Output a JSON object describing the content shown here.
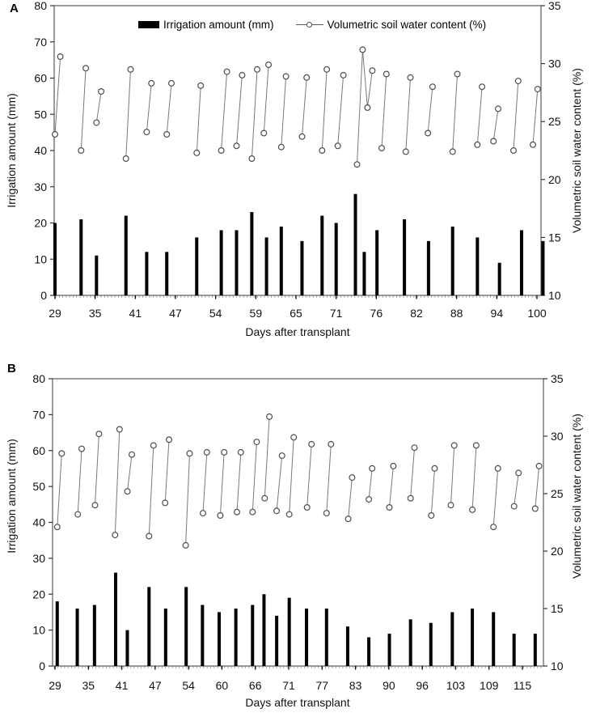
{
  "panel_labels": [
    "A",
    "B"
  ],
  "legend": {
    "bar_label": "Irrigation amount (mm)",
    "line_label": "Volumetric soil water content (%)"
  },
  "colors": {
    "bar": "#000000",
    "line": "#787878",
    "marker_stroke": "#4d4d4d",
    "marker_fill": "#ffffff",
    "axis": "#595959",
    "text": "#111111"
  },
  "chart_data": [
    {
      "type": "bar",
      "panel": "A",
      "title": "",
      "xlabel": "Days after transplant",
      "ylabel_left": "Irrigation amount (mm)",
      "ylabel_right": "Volumetric soil water content (%)",
      "x_ticks": [
        29,
        35,
        41,
        47,
        54,
        59,
        65,
        71,
        76,
        82,
        88,
        94,
        100
      ],
      "ylim_left": [
        0,
        80
      ],
      "yticks_left": [
        0,
        10,
        20,
        30,
        40,
        50,
        60,
        70,
        80
      ],
      "ylim_right": [
        10,
        35
      ],
      "yticks_right": [
        10,
        15,
        20,
        25,
        30,
        35
      ],
      "grid": false,
      "legend_position": "top-center",
      "series": [
        {
          "name": "Irrigation amount (mm)",
          "type": "bar",
          "axis": "left",
          "points": [
            [
              29.0,
              20
            ],
            [
              32.9,
              21
            ],
            [
              35.2,
              11
            ],
            [
              39.6,
              22
            ],
            [
              42.7,
              12
            ],
            [
              45.7,
              12
            ],
            [
              50.7,
              16
            ],
            [
              54.7,
              18
            ],
            [
              56.6,
              18
            ],
            [
              58.5,
              23
            ],
            [
              60.6,
              16
            ],
            [
              62.8,
              19
            ],
            [
              65.9,
              15
            ],
            [
              68.9,
              22
            ],
            [
              71.0,
              20
            ],
            [
              73.4,
              28
            ],
            [
              74.5,
              12
            ],
            [
              76.1,
              18
            ],
            [
              80.2,
              21
            ],
            [
              83.8,
              15
            ],
            [
              87.4,
              19
            ],
            [
              91.1,
              16
            ],
            [
              94.4,
              9
            ],
            [
              97.7,
              18
            ],
            [
              100.9,
              15
            ]
          ]
        },
        {
          "name": "Volumetric soil water content (%)",
          "type": "line",
          "axis": "right",
          "segments": [
            [
              [
                29.0,
                23.9
              ],
              [
                29.8,
                30.6
              ]
            ],
            [
              [
                32.9,
                22.5
              ],
              [
                33.6,
                29.6
              ]
            ],
            [
              [
                35.2,
                24.9
              ],
              [
                35.9,
                27.6
              ]
            ],
            [
              [
                39.6,
                21.8
              ],
              [
                40.3,
                29.5
              ]
            ],
            [
              [
                42.7,
                24.1
              ],
              [
                43.4,
                28.3
              ]
            ],
            [
              [
                45.7,
                23.9
              ],
              [
                46.4,
                28.3
              ]
            ],
            [
              [
                50.7,
                22.3
              ],
              [
                51.4,
                28.1
              ]
            ],
            [
              [
                54.7,
                22.5
              ],
              [
                55.4,
                29.3
              ]
            ],
            [
              [
                56.6,
                22.9
              ],
              [
                57.3,
                29.0
              ]
            ],
            [
              [
                58.5,
                21.8
              ],
              [
                59.2,
                29.5
              ]
            ],
            [
              [
                60.2,
                24.0
              ],
              [
                60.9,
                29.9
              ]
            ],
            [
              [
                62.8,
                22.8
              ],
              [
                63.5,
                28.9
              ]
            ],
            [
              [
                65.9,
                23.7
              ],
              [
                66.6,
                28.8
              ]
            ],
            [
              [
                68.9,
                22.5
              ],
              [
                69.6,
                29.5
              ]
            ],
            [
              [
                71.2,
                22.9
              ],
              [
                71.9,
                29.0
              ]
            ],
            [
              [
                73.6,
                21.3
              ],
              [
                74.3,
                31.2
              ],
              [
                74.9,
                26.2
              ],
              [
                75.5,
                29.4
              ]
            ],
            [
              [
                76.8,
                22.7
              ],
              [
                77.5,
                29.1
              ]
            ],
            [
              [
                80.4,
                22.4
              ],
              [
                81.1,
                28.8
              ]
            ],
            [
              [
                83.7,
                24.0
              ],
              [
                84.4,
                28.0
              ]
            ],
            [
              [
                87.4,
                22.4
              ],
              [
                88.1,
                29.1
              ]
            ],
            [
              [
                91.1,
                23.0
              ],
              [
                91.8,
                28.0
              ]
            ],
            [
              [
                93.5,
                23.3
              ],
              [
                94.2,
                26.1
              ]
            ],
            [
              [
                96.5,
                22.5
              ],
              [
                97.2,
                28.5
              ]
            ],
            [
              [
                99.4,
                23.0
              ],
              [
                100.1,
                27.8
              ]
            ]
          ]
        }
      ]
    },
    {
      "type": "bar",
      "panel": "B",
      "title": "",
      "xlabel": "Days after transplant",
      "ylabel_left": "Irrigation amount (mm)",
      "ylabel_right": "Volumetric soil water content (%)",
      "x_ticks": [
        29,
        35,
        41,
        47,
        54,
        60,
        66,
        71,
        77,
        83,
        90,
        96,
        103,
        109,
        115
      ],
      "ylim_left": [
        0,
        80
      ],
      "yticks_left": [
        0,
        10,
        20,
        30,
        40,
        50,
        60,
        70,
        80
      ],
      "ylim_right": [
        10,
        35
      ],
      "yticks_right": [
        10,
        15,
        20,
        25,
        30,
        35
      ],
      "grid": false,
      "legend_position": "none",
      "series": [
        {
          "name": "Irrigation amount (mm)",
          "type": "bar",
          "axis": "left",
          "points": [
            [
              29.4,
              18
            ],
            [
              33.0,
              16
            ],
            [
              36.1,
              17
            ],
            [
              39.9,
              26
            ],
            [
              42.0,
              10
            ],
            [
              45.9,
              22
            ],
            [
              49.2,
              16
            ],
            [
              53.5,
              22
            ],
            [
              56.5,
              17
            ],
            [
              59.5,
              15
            ],
            [
              62.5,
              16
            ],
            [
              65.5,
              17
            ],
            [
              67.3,
              20
            ],
            [
              69.2,
              14
            ],
            [
              71.1,
              19
            ],
            [
              74.2,
              16
            ],
            [
              77.8,
              16
            ],
            [
              81.6,
              11
            ],
            [
              85.8,
              8
            ],
            [
              90.1,
              9
            ],
            [
              93.9,
              13
            ],
            [
              97.8,
              12
            ],
            [
              102.3,
              15
            ],
            [
              106.0,
              16
            ],
            [
              109.8,
              15
            ],
            [
              113.5,
              9
            ],
            [
              117.3,
              9
            ]
          ]
        },
        {
          "name": "Volumetric soil water content (%)",
          "type": "line",
          "axis": "right",
          "segments": [
            [
              [
                29.4,
                22.1
              ],
              [
                30.2,
                28.5
              ]
            ],
            [
              [
                33.1,
                23.2
              ],
              [
                33.8,
                28.9
              ]
            ],
            [
              [
                36.2,
                24.0
              ],
              [
                36.9,
                30.2
              ]
            ],
            [
              [
                39.8,
                21.4
              ],
              [
                40.6,
                30.6
              ]
            ],
            [
              [
                42.0,
                25.2
              ],
              [
                42.8,
                28.4
              ]
            ],
            [
              [
                45.9,
                21.3
              ],
              [
                46.7,
                29.2
              ]
            ],
            [
              [
                49.1,
                24.2
              ],
              [
                49.9,
                29.7
              ]
            ],
            [
              [
                53.4,
                20.5
              ],
              [
                54.2,
                28.5
              ]
            ],
            [
              [
                56.6,
                23.3
              ],
              [
                57.3,
                28.6
              ]
            ],
            [
              [
                59.7,
                23.1
              ],
              [
                60.4,
                28.6
              ]
            ],
            [
              [
                62.7,
                23.4
              ],
              [
                63.4,
                28.6
              ]
            ],
            [
              [
                65.5,
                23.4
              ],
              [
                66.2,
                29.5
              ]
            ],
            [
              [
                67.4,
                24.6
              ],
              [
                68.1,
                31.7
              ]
            ],
            [
              [
                69.2,
                23.5
              ],
              [
                70.0,
                28.3
              ]
            ],
            [
              [
                71.1,
                23.2
              ],
              [
                71.9,
                29.9
              ]
            ],
            [
              [
                74.3,
                23.8
              ],
              [
                75.1,
                29.3
              ]
            ],
            [
              [
                77.8,
                23.3
              ],
              [
                78.6,
                29.3
              ]
            ],
            [
              [
                81.7,
                22.8
              ],
              [
                82.4,
                26.4
              ]
            ],
            [
              [
                85.8,
                24.5
              ],
              [
                86.5,
                27.2
              ]
            ],
            [
              [
                90.1,
                23.8
              ],
              [
                90.8,
                27.4
              ]
            ],
            [
              [
                93.9,
                24.6
              ],
              [
                94.6,
                29.0
              ]
            ],
            [
              [
                97.9,
                23.1
              ],
              [
                98.6,
                27.2
              ]
            ],
            [
              [
                102.0,
                24.0
              ],
              [
                102.7,
                29.2
              ]
            ],
            [
              [
                106.0,
                23.6
              ],
              [
                106.7,
                29.2
              ]
            ],
            [
              [
                109.8,
                22.1
              ],
              [
                110.6,
                27.2
              ]
            ],
            [
              [
                113.5,
                23.9
              ],
              [
                114.3,
                26.8
              ]
            ],
            [
              [
                117.3,
                23.7
              ],
              [
                118.0,
                27.4
              ]
            ]
          ]
        }
      ]
    }
  ]
}
